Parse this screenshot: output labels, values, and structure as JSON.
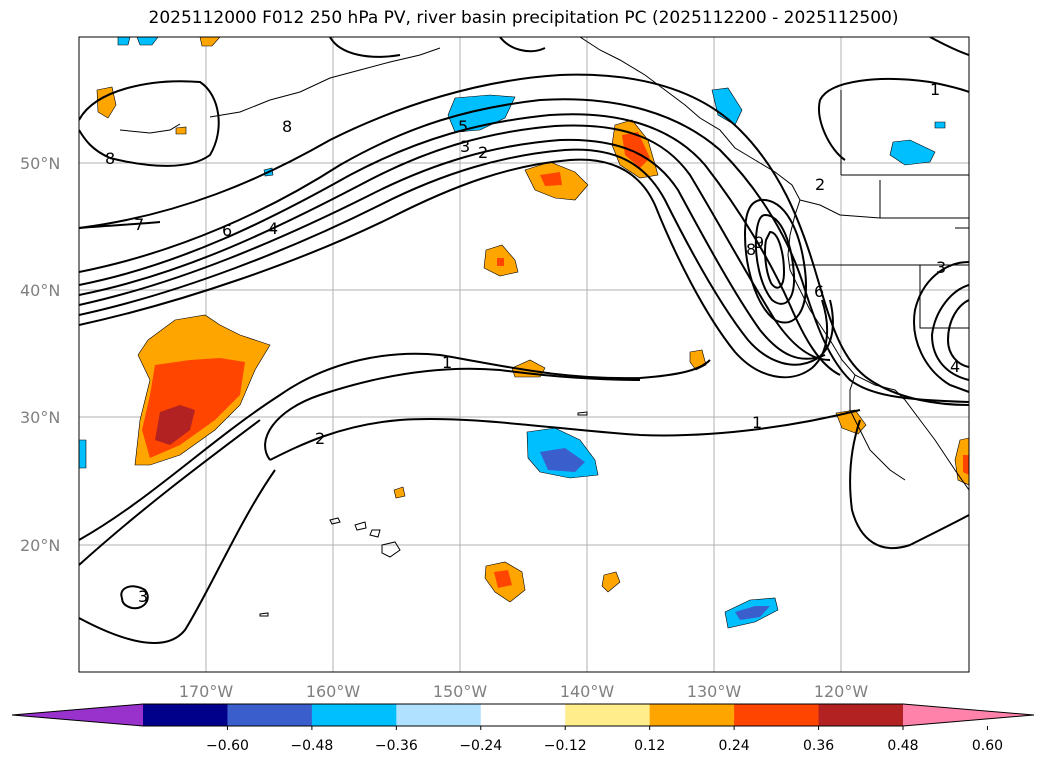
{
  "title": "2025112000 F012 250 hPa PV, river basin precipitation PC (2025112200 - 2025112500)",
  "map": {
    "lat_labels": [
      "50°N",
      "40°N",
      "30°N",
      "20°N"
    ],
    "lon_labels": [
      "170°W",
      "160°W",
      "150°W",
      "140°W",
      "130°W",
      "120°W"
    ],
    "grid": true,
    "contour_labels": [
      "1",
      "1",
      "1",
      "2",
      "2",
      "3",
      "3",
      "4",
      "4",
      "5",
      "6",
      "6",
      "7",
      "8",
      "8",
      "8",
      "9",
      "2",
      "3"
    ]
  },
  "colorbar": {
    "extend": "both",
    "colors": [
      "#9932CC",
      "#00008B",
      "#3A5FCD",
      "#00BFFF",
      "#B0E2FF",
      "#FFFFFF",
      "#FFEC8B",
      "#FFA500",
      "#FF4500",
      "#B22222",
      "#FF82AB"
    ],
    "tick_labels": [
      "−0.60",
      "−0.48",
      "−0.36",
      "−0.24",
      "−0.12",
      "0.12",
      "0.24",
      "0.36",
      "0.48",
      "0.60"
    ]
  }
}
